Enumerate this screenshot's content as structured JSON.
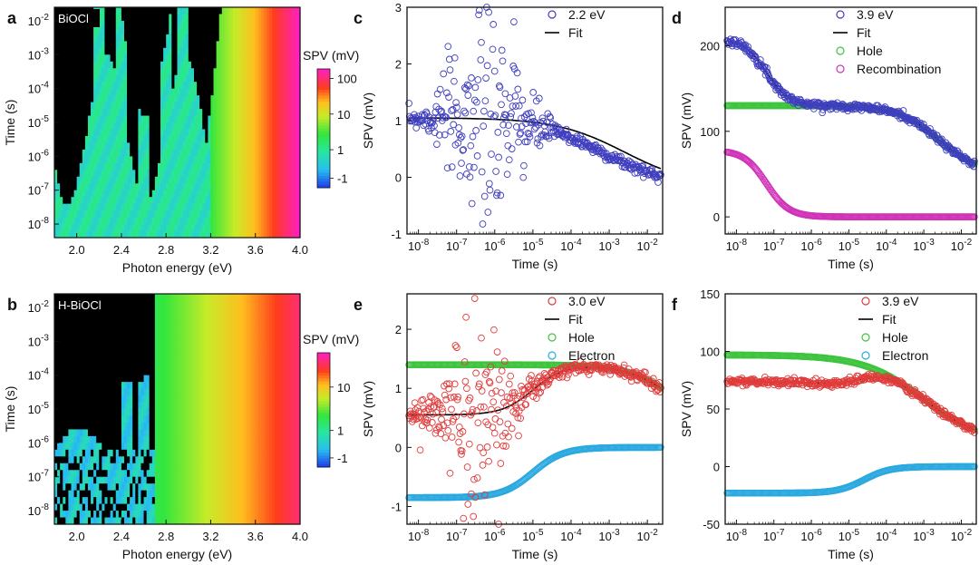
{
  "chart_data": [
    {
      "id": "a",
      "type": "heatmap",
      "panel_letter": "a",
      "sample_label": "BiOCl",
      "xlabel": "Photon energy (eV)",
      "ylabel": "Time (s)",
      "x_ticks": [
        2.0,
        2.4,
        2.8,
        3.2,
        3.6,
        4.0
      ],
      "xlim": [
        1.8,
        4.0
      ],
      "y_ticks": [
        "10-8",
        "10-7",
        "10-6",
        "10-5",
        "10-4",
        "10-3",
        "10-2"
      ],
      "ylim_log10": [
        -8.4,
        -1.6
      ],
      "colorbar": {
        "title": "SPV (mV)",
        "ticks": [
          "100",
          "10",
          "1",
          "-1"
        ]
      },
      "dark_above_eV": 3.2,
      "bright_stripe_eV": [
        2.2,
        2.4,
        2.6,
        2.8,
        2.95
      ]
    },
    {
      "id": "b",
      "type": "heatmap",
      "panel_letter": "b",
      "sample_label": "H-BiOCl",
      "xlabel": "Photon energy (eV)",
      "ylabel": "Time (s)",
      "x_ticks": [
        2.0,
        2.4,
        2.8,
        3.2,
        3.6,
        4.0
      ],
      "xlim": [
        1.8,
        4.0
      ],
      "y_ticks": [
        "10-8",
        "10-7",
        "10-6",
        "10-5",
        "10-4",
        "10-3",
        "10-2"
      ],
      "ylim_log10": [
        -8.4,
        -1.6
      ],
      "colorbar": {
        "title": "SPV (mV)",
        "ticks": [
          "10",
          "1",
          "-1"
        ]
      },
      "dark_above_eV": 2.7,
      "bright_stripe_eV": [
        2.45,
        2.6
      ]
    },
    {
      "id": "c",
      "type": "scatter",
      "panel_letter": "c",
      "xlabel": "Time (s)",
      "ylabel": "SPV (mV)",
      "x_ticks_log10": [
        -8,
        -7,
        -6,
        -5,
        -4,
        -3,
        -2
      ],
      "xlim_log10": [
        -8.3,
        -1.6
      ],
      "y_ticks": [
        -1,
        0,
        1,
        2,
        3
      ],
      "ylim": [
        -1,
        3
      ],
      "legend": [
        "2.2 eV",
        "Fit"
      ],
      "legend_position": "top-right",
      "series": [
        {
          "name": "2.2 eV",
          "marker": "open-circle",
          "color": "#3f3fbf",
          "model": {
            "kind": "noisy-decay",
            "start": 1.05,
            "end": -0.05,
            "t_decay_log10": -3.2,
            "noise_peak": 1.1,
            "noise_center_log10": -6.2,
            "noise_width": 1.0
          }
        },
        {
          "name": "Fit",
          "line": true,
          "color": "#000000",
          "model": {
            "kind": "decay",
            "start": 1.05,
            "end": -0.05,
            "t_decay_log10": -2.6
          }
        }
      ]
    },
    {
      "id": "d",
      "type": "scatter",
      "panel_letter": "d",
      "xlabel": "Time (s)",
      "ylabel": "SPV (mV)",
      "x_ticks_log10": [
        -8,
        -7,
        -6,
        -5,
        -4,
        -3,
        -2
      ],
      "xlim_log10": [
        -8.3,
        -1.6
      ],
      "y_ticks": [
        0,
        100,
        200
      ],
      "ylim": [
        -20,
        245
      ],
      "legend": [
        "3.9 eV",
        "Fit",
        "Hole",
        "Recombination"
      ],
      "legend_position": "top-right",
      "series": [
        {
          "name": "3.9 eV",
          "marker": "open-circle",
          "color": "#3f3fbf",
          "model": {
            "kind": "sum",
            "parts": [
              "Hole",
              "Recombination"
            ],
            "noise": 2
          }
        },
        {
          "name": "Fit",
          "line": true,
          "color": "#000000",
          "model": {
            "kind": "sum",
            "parts": [
              "Hole",
              "Recombination"
            ]
          }
        },
        {
          "name": "Hole",
          "marker": "open-circle",
          "color": "#3ec43e",
          "model": {
            "kind": "step",
            "start": 130,
            "end": 50,
            "center_log10": -2.6,
            "width": 0.55
          }
        },
        {
          "name": "Recombination",
          "marker": "open-circle",
          "color": "#d033b8",
          "model": {
            "kind": "step",
            "start": 78,
            "end": 0,
            "center_log10": -7.2,
            "width": 0.3
          }
        }
      ]
    },
    {
      "id": "e",
      "type": "scatter",
      "panel_letter": "e",
      "xlabel": "Time (s)",
      "ylabel": "SPV (mV)",
      "x_ticks_log10": [
        -8,
        -7,
        -6,
        -5,
        -4,
        -3,
        -2
      ],
      "xlim_log10": [
        -8.3,
        -1.6
      ],
      "y_ticks": [
        -1,
        0,
        1,
        2
      ],
      "ylim": [
        -1.3,
        2.6
      ],
      "legend": [
        "3.0 eV",
        "Fit",
        "Hole",
        "Electron"
      ],
      "legend_position": "top-right",
      "series": [
        {
          "name": "3.0 eV",
          "marker": "open-circle",
          "color": "#e03c3c",
          "model": {
            "kind": "sum",
            "parts": [
              "Hole",
              "Electron"
            ],
            "noise_peak": 0.8,
            "noise_center_log10": -6.5,
            "noise_width": 1.0
          }
        },
        {
          "name": "Fit",
          "line": true,
          "color": "#000000",
          "model": {
            "kind": "sum",
            "parts": [
              "Hole",
              "Electron"
            ]
          }
        },
        {
          "name": "Hole",
          "marker": "open-circle",
          "color": "#3ec43e",
          "model": {
            "kind": "step",
            "start": 1.4,
            "end": 0.3,
            "center_log10": -1.3,
            "width": 0.6
          }
        },
        {
          "name": "Electron",
          "marker": "open-circle",
          "color": "#2ba9e0",
          "model": {
            "kind": "step",
            "start": -0.85,
            "end": 0,
            "center_log10": -5.0,
            "width": 0.4
          }
        }
      ]
    },
    {
      "id": "f",
      "type": "scatter",
      "panel_letter": "f",
      "xlabel": "Time (s)",
      "ylabel": "SPV (mV)",
      "x_ticks_log10": [
        -8,
        -7,
        -6,
        -5,
        -4,
        -3,
        -2
      ],
      "xlim_log10": [
        -8.3,
        -1.6
      ],
      "y_ticks": [
        -50,
        0,
        50,
        100,
        150
      ],
      "ylim": [
        -50,
        150
      ],
      "legend": [
        "3.9 eV",
        "Fit",
        "Hole",
        "Electron"
      ],
      "legend_position": "top-right",
      "series": [
        {
          "name": "3.9 eV",
          "marker": "open-circle",
          "color": "#e03c3c",
          "model": {
            "kind": "sum",
            "parts": [
              "Hole",
              "Electron"
            ],
            "noise": 1.5
          }
        },
        {
          "name": "Fit",
          "line": true,
          "color": "#000000",
          "model": {
            "kind": "sum",
            "parts": [
              "Hole",
              "Electron"
            ]
          }
        },
        {
          "name": "Hole",
          "marker": "open-circle",
          "color": "#3ec43e",
          "model": {
            "kind": "step",
            "start": 97,
            "end": 20,
            "center_log10": -3.0,
            "width": 0.8
          }
        },
        {
          "name": "Electron",
          "marker": "open-circle",
          "color": "#2ba9e0",
          "model": {
            "kind": "step",
            "start": -23,
            "end": 0,
            "center_log10": -4.6,
            "width": 0.35
          }
        }
      ]
    }
  ]
}
